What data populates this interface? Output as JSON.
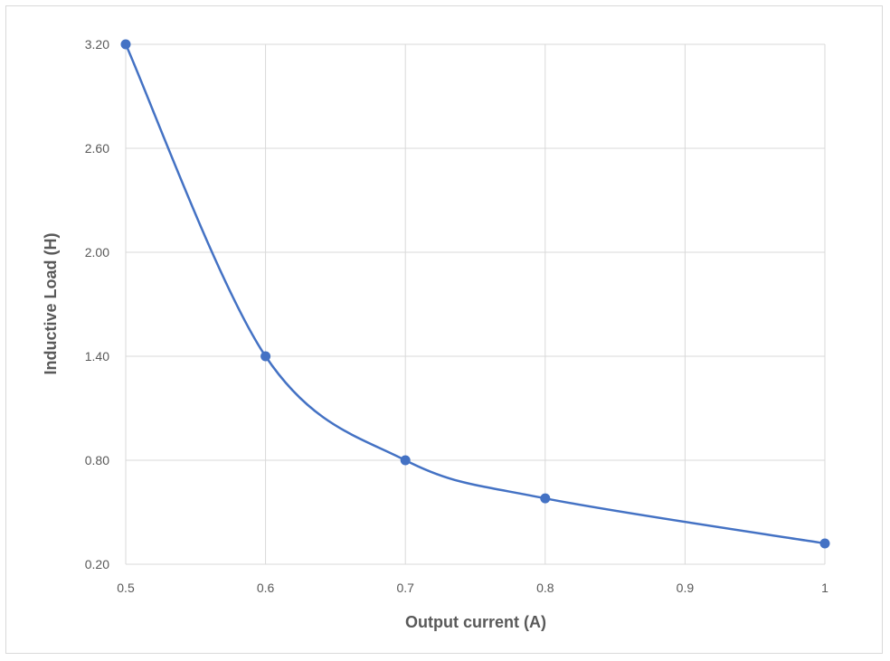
{
  "chart_data": {
    "type": "line",
    "title": "",
    "xlabel": "Output current (A)",
    "ylabel": "Inductive Load (H)",
    "x_ticks": [
      "0.5",
      "0.6",
      "0.7",
      "0.8",
      "0.9",
      "1"
    ],
    "y_ticks": [
      "0.20",
      "0.80",
      "1.40",
      "2.00",
      "2.60",
      "3.20"
    ],
    "xlim": [
      0.5,
      1.0
    ],
    "ylim": [
      0.2,
      3.2
    ],
    "grid": true,
    "smooth": true,
    "series": [
      {
        "color": "#4472c4",
        "x": [
          0.5,
          0.6,
          0.7,
          0.8,
          1.0
        ],
        "y": [
          3.2,
          1.4,
          0.8,
          0.58,
          0.32
        ]
      }
    ]
  }
}
